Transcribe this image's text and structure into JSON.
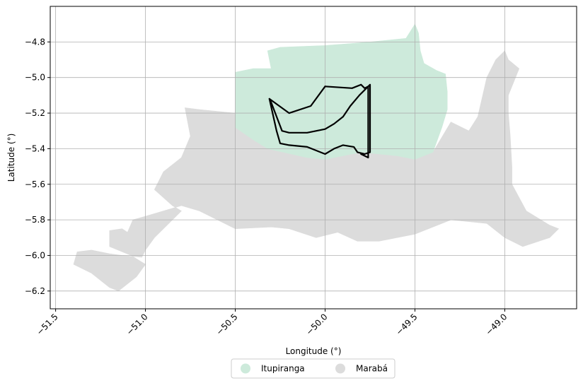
{
  "chart_data": {
    "type": "map",
    "xlabel": "Longitude (°)",
    "ylabel": "Latitude (°)",
    "xlim": [
      -51.53,
      -48.6
    ],
    "ylim": [
      -6.3,
      -4.6
    ],
    "x_ticks": [
      -51.5,
      -51.0,
      -50.5,
      -50.0,
      -49.5,
      -49.0
    ],
    "y_ticks": [
      -4.8,
      -5.0,
      -5.2,
      -5.4,
      -5.6,
      -5.8,
      -6.0,
      -6.2
    ],
    "x_tick_labels": [
      "−51.5",
      "−51.0",
      "−50.5",
      "−50.0",
      "−49.5",
      "−49.0"
    ],
    "y_tick_labels": [
      "−4.8",
      "−5.0",
      "−5.2",
      "−5.4",
      "−5.6",
      "−5.8",
      "−6.0",
      "−6.2"
    ],
    "grid": true,
    "legend_position": "bottom-center",
    "legend": [
      {
        "label": "Itupiranga",
        "color": "#cdeadb"
      },
      {
        "label": "Marabá",
        "color": "#dcdcdc"
      }
    ],
    "regions": [
      {
        "name": "Marabá",
        "color": "#dcdcdc",
        "coords": [
          [
            -51.4,
            -6.05
          ],
          [
            -51.38,
            -5.98
          ],
          [
            -51.3,
            -5.97
          ],
          [
            -51.2,
            -5.99
          ],
          [
            -51.13,
            -6.0
          ],
          [
            -51.02,
            -6.01
          ],
          [
            -51.0,
            -5.97
          ],
          [
            -50.95,
            -5.9
          ],
          [
            -50.88,
            -5.83
          ],
          [
            -50.8,
            -5.75
          ],
          [
            -50.85,
            -5.72
          ],
          [
            -50.95,
            -5.63
          ],
          [
            -50.9,
            -5.53
          ],
          [
            -50.8,
            -5.45
          ],
          [
            -50.75,
            -5.33
          ],
          [
            -50.78,
            -5.17
          ],
          [
            -50.7,
            -5.18
          ],
          [
            -50.5,
            -5.2
          ],
          [
            -50.5,
            -5.28
          ],
          [
            -50.4,
            -5.35
          ],
          [
            -50.32,
            -5.4
          ],
          [
            -50.1,
            -5.45
          ],
          [
            -50.0,
            -5.46
          ],
          [
            -49.8,
            -5.42
          ],
          [
            -49.6,
            -5.44
          ],
          [
            -49.5,
            -5.46
          ],
          [
            -49.4,
            -5.42
          ],
          [
            -49.3,
            -5.25
          ],
          [
            -49.2,
            -5.3
          ],
          [
            -49.15,
            -5.22
          ],
          [
            -49.1,
            -5.0
          ],
          [
            -49.05,
            -4.9
          ],
          [
            -49.0,
            -4.85
          ],
          [
            -48.98,
            -4.9
          ],
          [
            -48.92,
            -4.95
          ],
          [
            -48.98,
            -5.1
          ],
          [
            -48.98,
            -5.2
          ],
          [
            -48.97,
            -5.32
          ],
          [
            -48.96,
            -5.5
          ],
          [
            -48.96,
            -5.6
          ],
          [
            -48.88,
            -5.75
          ],
          [
            -48.75,
            -5.83
          ],
          [
            -48.7,
            -5.85
          ],
          [
            -48.75,
            -5.9
          ],
          [
            -48.9,
            -5.95
          ],
          [
            -49.0,
            -5.9
          ],
          [
            -49.1,
            -5.82
          ],
          [
            -49.3,
            -5.8
          ],
          [
            -49.5,
            -5.88
          ],
          [
            -49.7,
            -5.92
          ],
          [
            -49.82,
            -5.92
          ],
          [
            -49.93,
            -5.87
          ],
          [
            -50.05,
            -5.9
          ],
          [
            -50.2,
            -5.85
          ],
          [
            -50.3,
            -5.84
          ],
          [
            -50.5,
            -5.85
          ],
          [
            -50.6,
            -5.8
          ],
          [
            -50.7,
            -5.75
          ],
          [
            -50.8,
            -5.72
          ],
          [
            -51.0,
            -5.78
          ],
          [
            -51.07,
            -5.8
          ],
          [
            -51.1,
            -5.87
          ],
          [
            -51.13,
            -5.85
          ],
          [
            -51.2,
            -5.86
          ],
          [
            -51.2,
            -5.95
          ],
          [
            -51.08,
            -6.0
          ],
          [
            -51.0,
            -6.05
          ],
          [
            -51.05,
            -6.12
          ],
          [
            -51.15,
            -6.2
          ],
          [
            -51.2,
            -6.18
          ],
          [
            -51.3,
            -6.1
          ],
          [
            -51.4,
            -6.05
          ]
        ]
      },
      {
        "name": "Itupiranga",
        "color": "#cdeadb",
        "coords": [
          [
            -50.5,
            -5.2
          ],
          [
            -50.5,
            -4.97
          ],
          [
            -50.4,
            -4.95
          ],
          [
            -50.3,
            -4.95
          ],
          [
            -50.32,
            -4.85
          ],
          [
            -50.25,
            -4.83
          ],
          [
            -50.0,
            -4.82
          ],
          [
            -49.75,
            -4.8
          ],
          [
            -49.55,
            -4.78
          ],
          [
            -49.5,
            -4.7
          ],
          [
            -49.48,
            -4.75
          ],
          [
            -49.47,
            -4.85
          ],
          [
            -49.45,
            -4.92
          ],
          [
            -49.38,
            -4.96
          ],
          [
            -49.33,
            -4.98
          ],
          [
            -49.32,
            -5.08
          ],
          [
            -49.32,
            -5.18
          ],
          [
            -49.35,
            -5.28
          ],
          [
            -49.4,
            -5.42
          ],
          [
            -49.5,
            -5.46
          ],
          [
            -49.6,
            -5.44
          ],
          [
            -49.8,
            -5.42
          ],
          [
            -50.0,
            -5.46
          ],
          [
            -50.1,
            -5.45
          ],
          [
            -50.32,
            -5.4
          ],
          [
            -50.4,
            -5.35
          ],
          [
            -50.5,
            -5.28
          ],
          [
            -50.5,
            -5.2
          ]
        ]
      }
    ],
    "outlines": [
      {
        "coords": [
          [
            -50.31,
            -5.12
          ],
          [
            -50.3,
            -5.14
          ],
          [
            -50.24,
            -5.3
          ],
          [
            -50.2,
            -5.31
          ],
          [
            -50.1,
            -5.31
          ],
          [
            -50.0,
            -5.29
          ],
          [
            -49.95,
            -5.26
          ],
          [
            -49.9,
            -5.22
          ],
          [
            -49.86,
            -5.16
          ],
          [
            -49.81,
            -5.1
          ],
          [
            -49.78,
            -5.07
          ],
          [
            -49.75,
            -5.04
          ],
          [
            -49.75,
            -5.42
          ],
          [
            -49.78,
            -5.43
          ],
          [
            -49.82,
            -5.42
          ],
          [
            -49.84,
            -5.39
          ],
          [
            -49.9,
            -5.38
          ],
          [
            -49.95,
            -5.4
          ],
          [
            -50.0,
            -5.43
          ],
          [
            -50.1,
            -5.39
          ],
          [
            -50.2,
            -5.38
          ],
          [
            -50.25,
            -5.37
          ],
          [
            -50.27,
            -5.3
          ],
          [
            -50.31,
            -5.12
          ]
        ]
      },
      {
        "coords": [
          [
            -50.0,
            -5.05
          ],
          [
            -49.85,
            -5.06
          ],
          [
            -49.8,
            -5.04
          ],
          [
            -49.78,
            -5.06
          ],
          [
            -49.76,
            -5.05
          ],
          [
            -49.76,
            -5.45
          ],
          [
            -49.8,
            -5.43
          ]
        ]
      },
      {
        "coords": [
          [
            -50.31,
            -5.12
          ],
          [
            -50.2,
            -5.2
          ],
          [
            -50.08,
            -5.16
          ],
          [
            -50.0,
            -5.05
          ]
        ]
      }
    ]
  }
}
